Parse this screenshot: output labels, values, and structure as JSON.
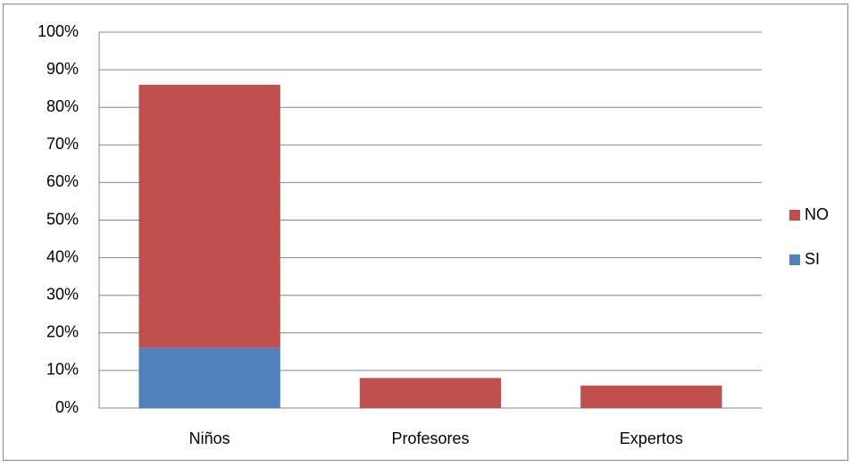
{
  "chart_data": {
    "type": "stacked_bar",
    "categories": [
      "Niños",
      "Profesores",
      "Expertos"
    ],
    "series": [
      {
        "name": "SI",
        "color": "#4f81bd",
        "values": [
          16,
          0,
          0
        ]
      },
      {
        "name": "NO",
        "color": "#c0504d",
        "values": [
          70,
          8,
          6
        ]
      }
    ],
    "ylim": [
      0,
      100
    ],
    "yticks": [
      {
        "value": 0,
        "label": "0%"
      },
      {
        "value": 10,
        "label": "10%"
      },
      {
        "value": 20,
        "label": "20%"
      },
      {
        "value": 30,
        "label": "30%"
      },
      {
        "value": 40,
        "label": "40%"
      },
      {
        "value": 50,
        "label": "50%"
      },
      {
        "value": 60,
        "label": "60%"
      },
      {
        "value": 70,
        "label": "70%"
      },
      {
        "value": 80,
        "label": "80%"
      },
      {
        "value": 90,
        "label": "90%"
      },
      {
        "value": 100,
        "label": "100%"
      }
    ],
    "grid": true,
    "legend": "right"
  }
}
